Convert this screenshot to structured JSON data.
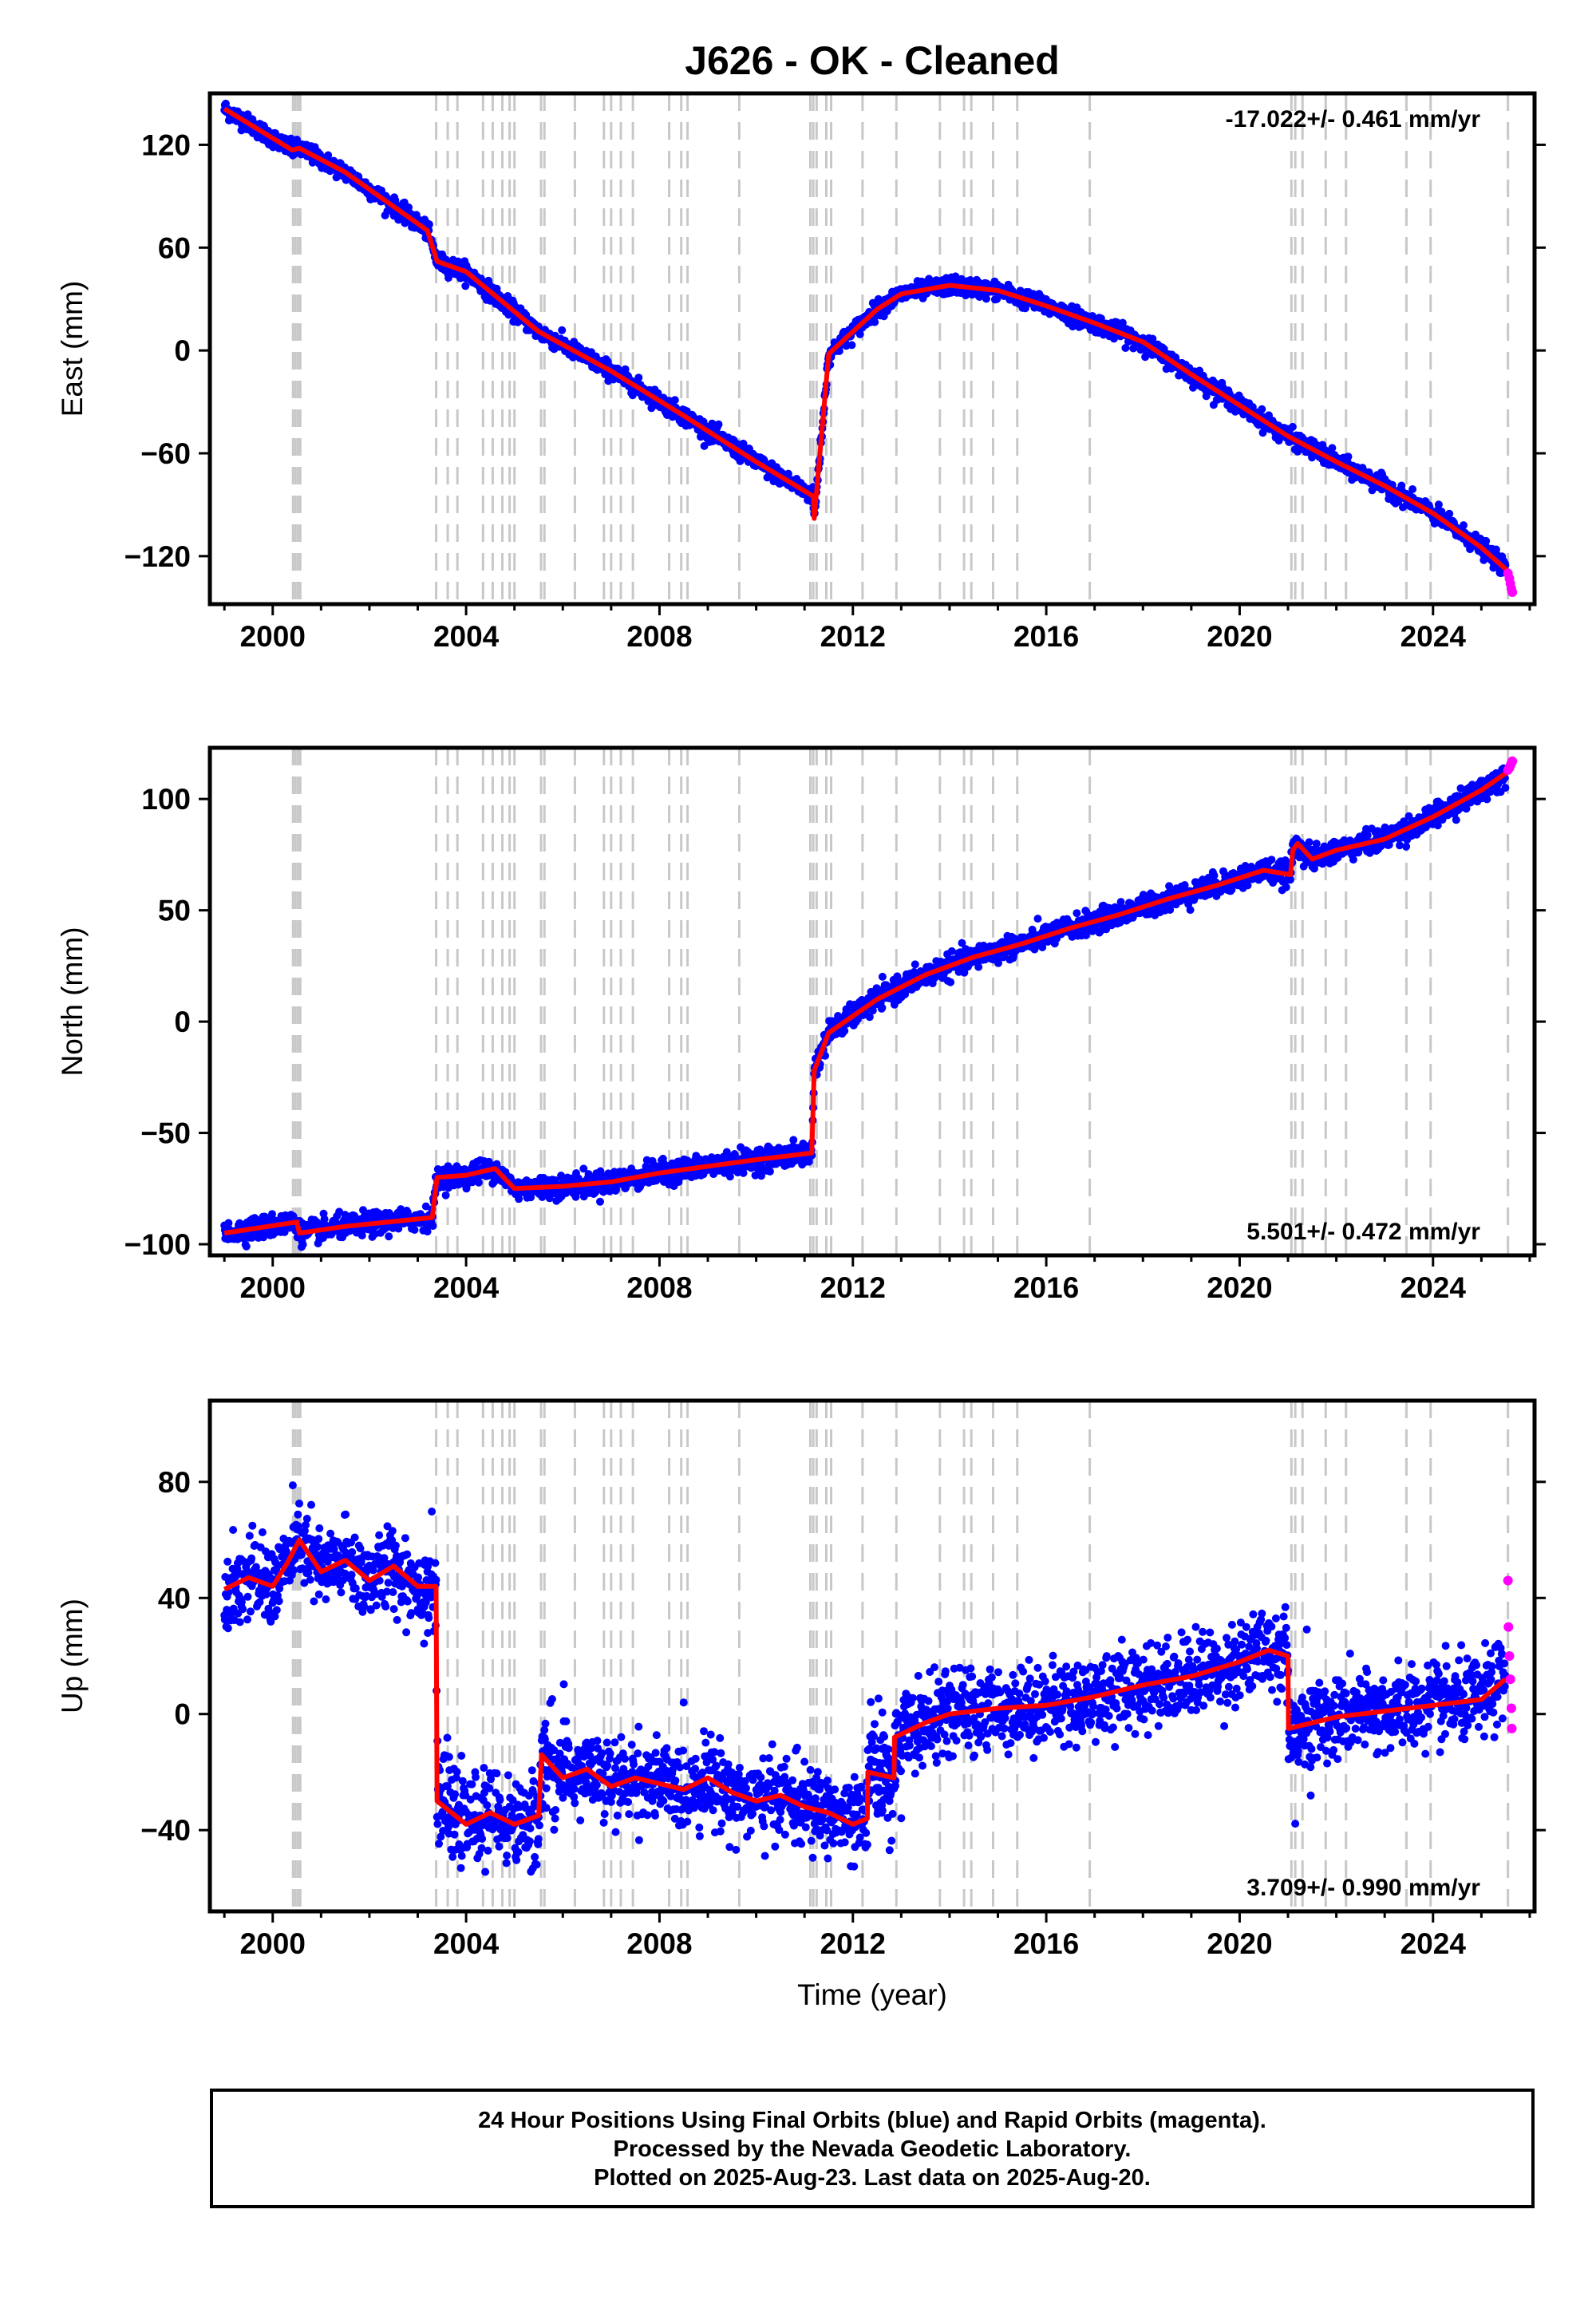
{
  "title": "J626  - OK - Cleaned",
  "colors": {
    "final": "#0000ff",
    "rapid": "#ff00ff",
    "model": "#ff0000",
    "event_line": "#c8c8c8"
  },
  "x_axis": {
    "label": "Time (year)",
    "range": [
      1998.7,
      2026.1
    ],
    "ticks": [
      2000,
      2004,
      2008,
      2012,
      2016,
      2020,
      2024
    ],
    "minor_step": 1
  },
  "event_lines": [
    2000.42,
    2000.47,
    2000.52,
    2000.57,
    2003.38,
    2003.62,
    2003.82,
    2004.35,
    2004.55,
    2004.75,
    2004.9,
    2005.0,
    2005.55,
    2005.62,
    2006.25,
    2006.85,
    2007.0,
    2007.2,
    2007.45,
    2008.2,
    2008.45,
    2008.58,
    2009.65,
    2011.12,
    2011.18,
    2011.25,
    2011.45,
    2011.55,
    2012.2,
    2012.9,
    2013.8,
    2014.3,
    2014.45,
    2014.9,
    2015.4,
    2016.9,
    2021.07,
    2021.15,
    2021.3,
    2021.78,
    2022.2,
    2023.45,
    2023.95,
    2025.55
  ],
  "chart_data": [
    {
      "type": "scatter",
      "name": "east",
      "ylabel": "East (mm)",
      "ylim": [
        -148,
        150
      ],
      "yticks": [
        -120,
        -60,
        0,
        60,
        120
      ],
      "rate_text": "-17.022+/- 0.461 mm/yr",
      "rate_position": "top-right",
      "x_start": 1999.0,
      "x_end_final": 2025.5,
      "noise_mm": 2.5,
      "steps": [],
      "series": [
        {
          "name": "model",
          "x": [
            1999.0,
            2000.4,
            2000.55,
            2001.5,
            2003.2,
            2003.4,
            2004.0,
            2005.5,
            2007.0,
            2008.5,
            2010.0,
            2011.18,
            2011.2,
            2011.5,
            2012.5,
            2013.0,
            2014.0,
            2015.0,
            2016.0,
            2017.0,
            2018.0,
            2019.0,
            2020.0,
            2021.0,
            2022.0,
            2023.0,
            2024.0,
            2025.0,
            2025.6
          ],
          "y": [
            141,
            117,
            118,
            104,
            70,
            52,
            46,
            11,
            -12,
            -38,
            -65,
            -85,
            -98,
            -2,
            24,
            33,
            38,
            35,
            26,
            16,
            5,
            -14,
            -32,
            -50,
            -65,
            -79,
            -95,
            -115,
            -130
          ]
        },
        {
          "name": "rapid",
          "x": [
            2025.55,
            2025.58,
            2025.6,
            2025.62,
            2025.64
          ],
          "y": [
            -130,
            -133,
            -136,
            -139,
            -141
          ]
        }
      ]
    },
    {
      "type": "scatter",
      "name": "north",
      "ylabel": "North (mm)",
      "ylim": [
        -105,
        123
      ],
      "yticks": [
        -100,
        -50,
        0,
        50,
        100
      ],
      "rate_text": "5.501+/- 0.472 mm/yr",
      "rate_position": "bottom-right",
      "x_start": 1999.0,
      "x_end_final": 2025.5,
      "noise_mm": 2.5,
      "steps": [],
      "series": [
        {
          "name": "model",
          "x": [
            1999.0,
            2000.5,
            2000.55,
            2001.5,
            2003.3,
            2003.4,
            2004.0,
            2004.6,
            2005.0,
            2006.0,
            2007.0,
            2008.0,
            2009.0,
            2010.0,
            2011.15,
            2011.2,
            2011.5,
            2012.5,
            2013.5,
            2014.5,
            2015.5,
            2016.5,
            2017.5,
            2018.5,
            2019.5,
            2020.5,
            2021.05,
            2021.1,
            2021.2,
            2021.5,
            2022.0,
            2023.0,
            2024.0,
            2025.0,
            2025.6
          ],
          "y": [
            -95,
            -90,
            -95,
            -92,
            -88,
            -70,
            -69,
            -66,
            -75,
            -74,
            -72,
            -68,
            -65,
            -62,
            -59,
            -22,
            -5,
            10,
            21,
            29,
            35,
            42,
            48,
            55,
            61,
            68,
            66,
            77,
            80,
            73,
            77,
            82,
            92,
            104,
            113
          ]
        },
        {
          "name": "rapid",
          "x": [
            2025.55,
            2025.58,
            2025.6,
            2025.62,
            2025.64
          ],
          "y": [
            113,
            114,
            115,
            116,
            117
          ]
        }
      ]
    },
    {
      "type": "scatter",
      "name": "up",
      "ylabel": "Up (mm)",
      "ylim": [
        -68,
        108
      ],
      "yticks": [
        -40,
        0,
        40,
        80
      ],
      "rate_text": "3.709+/- 0.990 mm/yr",
      "rate_position": "bottom-right",
      "x_start": 1999.0,
      "x_end_final": 2025.5,
      "noise_mm": 7,
      "steps": [
        2003.38,
        2005.55,
        2012.3,
        2012.85,
        2021.0
      ],
      "series": [
        {
          "name": "model",
          "x": [
            1999.0,
            1999.5,
            2000.0,
            2000.3,
            2000.55,
            2001.0,
            2001.5,
            2002.0,
            2002.5,
            2003.0,
            2003.38,
            2003.4,
            2004.0,
            2004.5,
            2005.0,
            2005.5,
            2005.56,
            2006.0,
            2006.5,
            2007.0,
            2007.5,
            2008.0,
            2008.5,
            2009.0,
            2009.5,
            2010.0,
            2010.5,
            2011.0,
            2011.5,
            2012.0,
            2012.3,
            2012.31,
            2012.85,
            2012.86,
            2013.5,
            2014.0,
            2015.0,
            2016.0,
            2017.0,
            2018.0,
            2019.0,
            2020.0,
            2020.6,
            2021.0,
            2021.01,
            2022.0,
            2023.0,
            2024.0,
            2025.0,
            2025.5
          ],
          "y": [
            43,
            47,
            44,
            52,
            60,
            49,
            53,
            46,
            51,
            44,
            44,
            -30,
            -38,
            -34,
            -38,
            -35,
            -14,
            -22,
            -19,
            -25,
            -22,
            -24,
            -26,
            -22,
            -27,
            -30,
            -28,
            -32,
            -34,
            -38,
            -36,
            -20,
            -22,
            -8,
            -3,
            0,
            2,
            3,
            6,
            10,
            13,
            18,
            22,
            20,
            -5,
            -1,
            1,
            3,
            5,
            12
          ]
        },
        {
          "name": "rapid",
          "x": [
            2025.55,
            2025.56,
            2025.58,
            2025.6,
            2025.62,
            2025.63
          ],
          "y": [
            46,
            30,
            20,
            12,
            2,
            -5
          ]
        }
      ]
    }
  ],
  "footer": {
    "line1": "24 Hour Positions Using Final Orbits (blue) and Rapid Orbits (magenta).",
    "line2": "Processed by the Nevada Geodetic Laboratory.",
    "line3": "Plotted on 2025-Aug-23. Last data on 2025-Aug-20."
  }
}
